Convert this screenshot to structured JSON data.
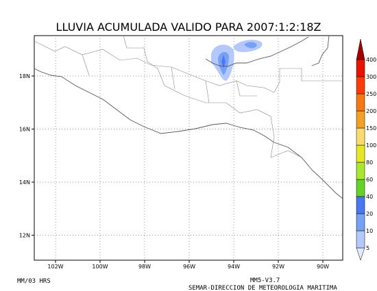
{
  "title": "LLUVIA ACUMULADA VALIDO PARA 2007:1:2:18Z",
  "lat_ticks": [
    "18N",
    "16N",
    "14N",
    "12N"
  ],
  "lon_ticks": [
    "102W",
    "100W",
    "98W",
    "96W",
    "94W",
    "92W",
    "90W"
  ],
  "colorbar": {
    "levels": [
      5,
      10,
      20,
      40,
      60,
      80,
      100,
      150,
      200,
      250,
      300,
      400
    ],
    "colors": [
      "#e1ebff",
      "#b4c8fa",
      "#78a0f5",
      "#4b78f0",
      "#64d228",
      "#aae632",
      "#e6e628",
      "#fadc6e",
      "#f0a028",
      "#f57814",
      "#fa3c0a",
      "#e61400",
      "#a00000"
    ]
  },
  "footer": {
    "left": "MM/03 HRS",
    "model": "MM5-V3.7",
    "credit": "SEMAR-DIRECCION DE METEOROLOGIA MARITIMA"
  }
}
